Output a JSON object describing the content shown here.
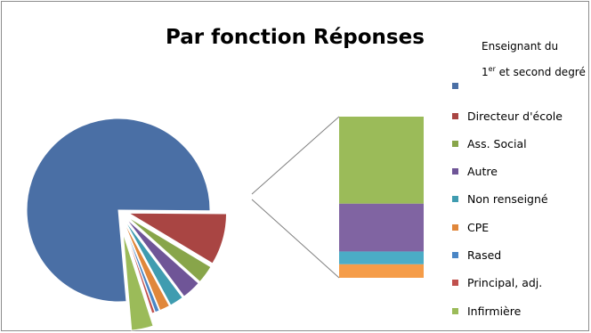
{
  "chart_data": {
    "type": "pie",
    "subtype": "bar-of-pie",
    "title": "Par fonction Réponses",
    "categories": [
      "Enseignant du 1er et second degré",
      "Directeur d'école",
      "Ass. Social",
      "Autre",
      "Non renseigné",
      "CPE",
      "Rased",
      "Principal, adj.",
      "Infirmière"
    ],
    "values": [
      76.5,
      8.5,
      3.0,
      3.2,
      2.3,
      1.7,
      0.7,
      0.5,
      3.6
    ],
    "colors": [
      "#4a6fa5",
      "#a94543",
      "#88a54a",
      "#6f5597",
      "#3f9cb0",
      "#e0873b",
      "#4a86c5",
      "#c0504d",
      "#9bbb59"
    ],
    "exploded_slices": [
      "Directeur d'école",
      "Ass. Social",
      "Autre",
      "Non renseigné",
      "CPE",
      "Rased",
      "Principal, adj."
    ],
    "secondary_bar": {
      "categories": [
        "CPE",
        "Non renseigné",
        "Autre",
        "Infirmière"
      ],
      "values": [
        1.7,
        1.6,
        6.0,
        10.9
      ],
      "colors": [
        "#f59c48",
        "#4bacc6",
        "#8064a2",
        "#9bbb59"
      ]
    },
    "legend_position": "right"
  },
  "legend": {
    "first_label": {
      "prefix": "Enseignant du",
      "sup_base": "1",
      "sup": "er",
      "suffix": " et second degré"
    },
    "items": [
      {
        "label": "Directeur d'école",
        "color": "#a94543"
      },
      {
        "label": "Ass. Social",
        "color": "#88a54a"
      },
      {
        "label": "Autre",
        "color": "#6f5597"
      },
      {
        "label": "Non renseigné",
        "color": "#3f9cb0"
      },
      {
        "label": "CPE",
        "color": "#e0873b"
      },
      {
        "label": "Rased",
        "color": "#4a86c5"
      },
      {
        "label": "Principal, adj.",
        "color": "#c0504d"
      },
      {
        "label": "Infirmière",
        "color": "#9bbb59"
      }
    ],
    "first_color": "#4a6fa5"
  }
}
